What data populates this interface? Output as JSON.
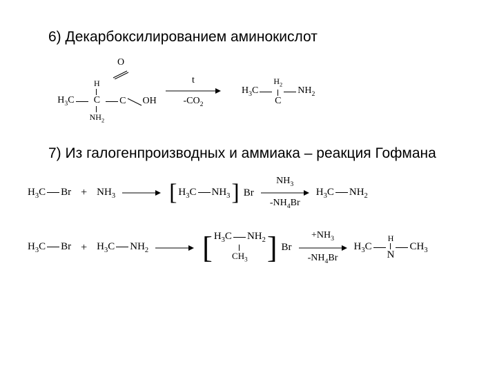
{
  "section6": {
    "title": "6) Декарбоксилированием аминокислот",
    "arrow_top": "t",
    "arrow_bot": "-CO₂",
    "reactant_top": "O",
    "reactant_oh": "OH",
    "reactant_h": "H",
    "reactant_ch": "C",
    "reactant_h3c": "H₃C",
    "reactant_nh2": "NH₂",
    "product_h3c": "H₃C",
    "product_h2": "H₂",
    "product_c": "C",
    "product_nh2": "NH₂"
  },
  "section7": {
    "title": "7) Из галогенпроизводных и аммиака – реакция Гофмана",
    "row1": {
      "r1": "H₃C—Br",
      "plus": "+",
      "r2": "NH₃",
      "int_core": "H₃C—NH₃",
      "int_counter": "Br",
      "arrow2_top": "NH₃",
      "arrow2_bot": "-NH₄Br",
      "prod": "H₃C—NH₂"
    },
    "row2": {
      "r1": "H₃C—Br",
      "plus": "+",
      "r2": "H₃C—NH₂",
      "int_top": "H₃C—NH₂",
      "int_bot": "CH₃",
      "int_counter": "Br",
      "arrow2_top": "+NH₃",
      "arrow2_bot": "-NH₄Br",
      "prod_left": "H₃C",
      "prod_mid_top": "H",
      "prod_mid": "N",
      "prod_right": "CH₃"
    }
  }
}
